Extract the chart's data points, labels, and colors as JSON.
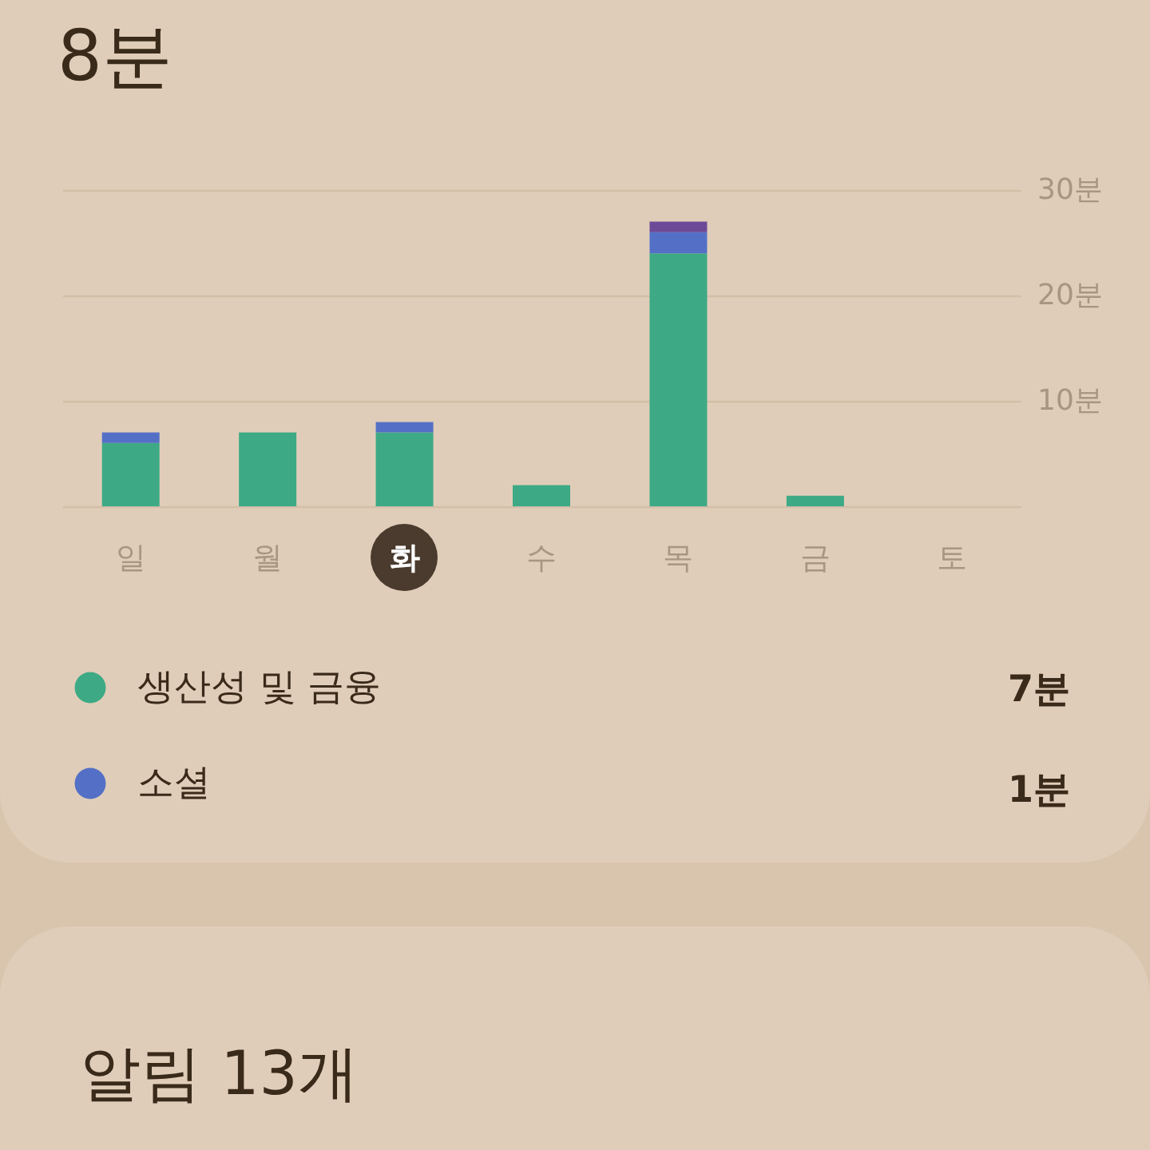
{
  "chart_data": {
    "type": "bar",
    "title": "8분",
    "categories": [
      "일",
      "월",
      "화",
      "수",
      "목",
      "금",
      "토"
    ],
    "series": [
      {
        "name": "생산성 및 금융",
        "color": "#3daa85",
        "values": [
          6,
          7,
          7,
          2,
          24,
          1,
          null
        ]
      },
      {
        "name": "소셜",
        "color": "#5470c6",
        "values": [
          1,
          null,
          1,
          null,
          2,
          null,
          null
        ]
      },
      {
        "color": "#6b4a98",
        "values": [
          null,
          null,
          null,
          null,
          1,
          null,
          null
        ]
      }
    ],
    "stacked": true,
    "ylim": [
      0,
      30
    ],
    "yticks": [
      {
        "value": 0,
        "label": null
      },
      {
        "value": 10,
        "label": "10분"
      },
      {
        "value": 20,
        "label": "20분"
      },
      {
        "value": 30,
        "label": "30분"
      }
    ],
    "grid": "y",
    "legend": "bottom left",
    "annotations": [
      "7분",
      "1분",
      "알림 13개"
    ]
  }
}
